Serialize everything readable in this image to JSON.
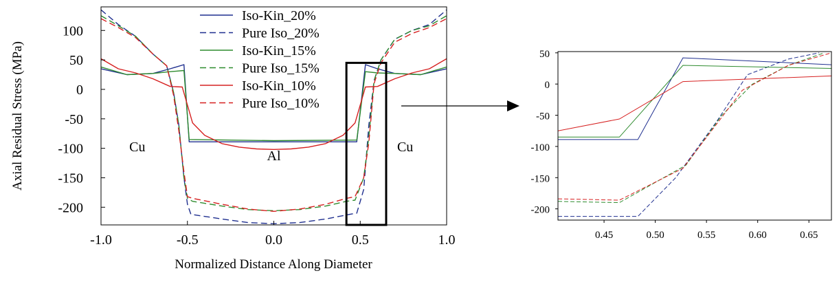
{
  "chart_data": [
    {
      "type": "line",
      "title": "",
      "xlabel": "Normalized Distance Along Diameter",
      "ylabel": "Axial Residual Stress (MPa)",
      "xlim": [
        -1.0,
        1.0
      ],
      "ylim": [
        -230,
        140
      ],
      "xticks": [
        -1.0,
        -0.5,
        0.0,
        0.5,
        1.0
      ],
      "xtick_labels": [
        "-1.0",
        "-0.5",
        "0.0",
        "0.5",
        "1.0"
      ],
      "yticks": [
        100,
        50,
        0,
        -50,
        -100,
        -150,
        -200
      ],
      "ytick_labels": [
        "100",
        "50",
        "0",
        "-50",
        "-100",
        "-150",
        "-200"
      ],
      "grid": false,
      "legend_position": "top-center",
      "annotations": [
        {
          "text": "Cu",
          "x": -0.79,
          "y": -105
        },
        {
          "text": "Al",
          "x": 0.0,
          "y": -120
        },
        {
          "text": "Cu",
          "x": 0.76,
          "y": -105
        }
      ],
      "highlight_box": {
        "x": [
          0.42,
          0.65
        ],
        "y": [
          -230,
          45
        ]
      },
      "series": [
        {
          "name": "Iso-Kin_20%",
          "color": "#1f2f8f",
          "dash": "solid",
          "x": [
            -1.0,
            -0.85,
            -0.7,
            -0.6,
            -0.52,
            -0.49,
            0.0,
            0.48,
            0.53,
            0.6,
            0.7,
            0.85,
            1.0
          ],
          "y": [
            35,
            25,
            27,
            35,
            42,
            -89,
            -89,
            -89,
            42,
            35,
            27,
            25,
            35
          ]
        },
        {
          "name": "Pure Iso_20%",
          "color": "#1f2f8f",
          "dash": "dashed",
          "x": [
            -1.0,
            -0.9,
            -0.8,
            -0.7,
            -0.62,
            -0.58,
            -0.55,
            -0.52,
            -0.5,
            -0.48,
            -0.3,
            -0.15,
            0.0,
            0.15,
            0.3,
            0.44,
            0.48,
            0.52,
            0.55,
            0.58,
            0.62,
            0.7,
            0.8,
            0.9,
            1.0
          ],
          "y": [
            135,
            110,
            90,
            60,
            40,
            -5,
            -60,
            -150,
            -195,
            -212,
            -220,
            -226,
            -228,
            -226,
            -220,
            -212,
            -210,
            -170,
            -60,
            15,
            50,
            85,
            100,
            110,
            135
          ]
        },
        {
          "name": "Iso-Kin_15%",
          "color": "#2e8b2e",
          "dash": "solid",
          "x": [
            -1.0,
            -0.85,
            -0.7,
            -0.6,
            -0.52,
            -0.49,
            0.0,
            0.48,
            0.53,
            0.6,
            0.7,
            0.85,
            1.0
          ],
          "y": [
            38,
            25,
            27,
            30,
            32,
            -85,
            -87,
            -86,
            30,
            28,
            27,
            25,
            38
          ]
        },
        {
          "name": "Pure Iso_15%",
          "color": "#2e8b2e",
          "dash": "dashed",
          "x": [
            -1.0,
            -0.9,
            -0.8,
            -0.7,
            -0.62,
            -0.58,
            -0.55,
            -0.52,
            -0.5,
            -0.47,
            -0.3,
            -0.15,
            0.0,
            0.15,
            0.3,
            0.42,
            0.47,
            0.52,
            0.55,
            0.58,
            0.62,
            0.7,
            0.8,
            0.9,
            1.0
          ],
          "y": [
            125,
            108,
            90,
            60,
            40,
            -5,
            -60,
            -150,
            -185,
            -190,
            -198,
            -204,
            -206,
            -204,
            -198,
            -190,
            -188,
            -150,
            -80,
            15,
            50,
            85,
            100,
            108,
            125
          ]
        },
        {
          "name": "Iso-Kin_10%",
          "color": "#d62020",
          "dash": "solid",
          "x": [
            -1.0,
            -0.9,
            -0.8,
            -0.7,
            -0.6,
            -0.53,
            -0.47,
            -0.4,
            -0.3,
            -0.2,
            -0.1,
            0.0,
            0.1,
            0.2,
            0.3,
            0.4,
            0.47,
            0.53,
            0.6,
            0.7,
            0.8,
            0.9,
            1.0
          ],
          "y": [
            52,
            35,
            28,
            18,
            5,
            4,
            -57,
            -78,
            -92,
            -98,
            -101,
            -102,
            -101,
            -98,
            -92,
            -78,
            -57,
            4,
            5,
            18,
            28,
            35,
            52
          ]
        },
        {
          "name": "Pure Iso_10%",
          "color": "#d62020",
          "dash": "dashed",
          "x": [
            -1.0,
            -0.9,
            -0.8,
            -0.7,
            -0.62,
            -0.58,
            -0.55,
            -0.52,
            -0.5,
            -0.47,
            -0.3,
            -0.15,
            0.0,
            0.15,
            0.3,
            0.42,
            0.47,
            0.52,
            0.55,
            0.58,
            0.62,
            0.7,
            0.8,
            0.9,
            1.0
          ],
          "y": [
            120,
            105,
            88,
            60,
            40,
            -10,
            -70,
            -140,
            -182,
            -185,
            -195,
            -203,
            -207,
            -203,
            -195,
            -185,
            -182,
            -150,
            -90,
            10,
            45,
            80,
            95,
            105,
            120
          ]
        }
      ]
    },
    {
      "type": "line",
      "title": "",
      "xlabel": "",
      "ylabel": "",
      "xlim": [
        0.405,
        0.672
      ],
      "ylim": [
        -218,
        52
      ],
      "xticks": [
        0.45,
        0.5,
        0.55,
        0.6,
        0.65
      ],
      "xtick_labels": [
        "0.45",
        "0.50",
        "0.55",
        "0.60",
        "0.65"
      ],
      "yticks": [
        50,
        0,
        -50,
        -100,
        -150,
        -200
      ],
      "ytick_labels": [
        "50",
        "0",
        "-50",
        "-100",
        "-150",
        "-200"
      ],
      "grid": false,
      "series": [
        {
          "color": "#1f2f8f",
          "dash": "solid",
          "x": [
            0.405,
            0.483,
            0.527,
            0.672
          ],
          "y": [
            -89,
            -89,
            42,
            31
          ]
        },
        {
          "color": "#1f2f8f",
          "dash": "dashed",
          "x": [
            0.405,
            0.483,
            0.52,
            0.56,
            0.59,
            0.63,
            0.66
          ],
          "y": [
            -212,
            -212,
            -150,
            -60,
            15,
            40,
            50
          ]
        },
        {
          "color": "#2e8b2e",
          "dash": "solid",
          "x": [
            0.405,
            0.465,
            0.527,
            0.672
          ],
          "y": [
            -85,
            -85,
            30,
            25
          ]
        },
        {
          "color": "#2e8b2e",
          "dash": "dashed",
          "x": [
            0.405,
            0.465,
            0.53,
            0.565,
            0.595,
            0.63,
            0.665
          ],
          "y": [
            -188,
            -190,
            -130,
            -50,
            0,
            30,
            50
          ]
        },
        {
          "color": "#d62020",
          "dash": "solid",
          "x": [
            0.405,
            0.465,
            0.527,
            0.672
          ],
          "y": [
            -75,
            -56,
            4,
            13
          ]
        },
        {
          "color": "#d62020",
          "dash": "dashed",
          "x": [
            0.405,
            0.465,
            0.527,
            0.585,
            0.63,
            0.672
          ],
          "y": [
            -184,
            -186,
            -135,
            -10,
            30,
            50
          ]
        }
      ]
    }
  ]
}
